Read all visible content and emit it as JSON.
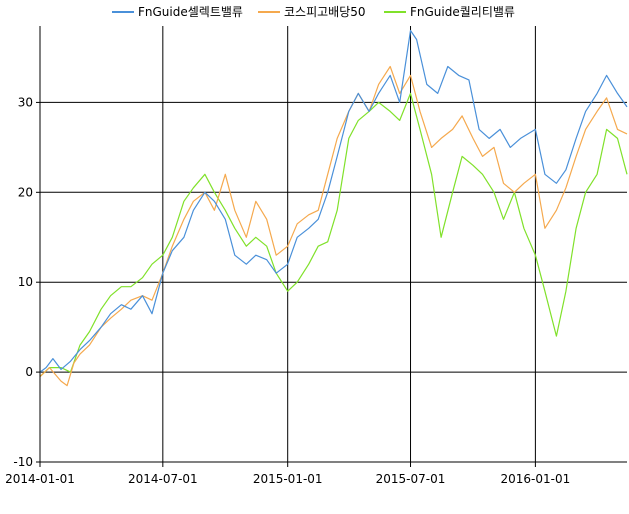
{
  "chart_data": {
    "type": "line",
    "title": "",
    "xlabel": "",
    "ylabel": "",
    "ylim": [
      -10,
      38.5
    ],
    "xlim": [
      "2014-01-01",
      "2016-05-15"
    ],
    "grid": true,
    "legend": "top-center",
    "xticks": [
      "2014-01-01",
      "2014-07-01",
      "2015-01-01",
      "2015-07-01",
      "2016-01-01"
    ],
    "yticks": [
      -10,
      0,
      10,
      20,
      30
    ],
    "series": [
      {
        "name": "FnGuide셀렉트밸류",
        "color": "#4a90d9",
        "points": [
          [
            "2014-01-01",
            0
          ],
          [
            "2014-01-10",
            0.5
          ],
          [
            "2014-01-20",
            1.5
          ],
          [
            "2014-02-01",
            0.3
          ],
          [
            "2014-02-15",
            1.2
          ],
          [
            "2014-03-01",
            2.5
          ],
          [
            "2014-03-15",
            3.5
          ],
          [
            "2014-04-01",
            5
          ],
          [
            "2014-04-15",
            6.5
          ],
          [
            "2014-05-01",
            7.5
          ],
          [
            "2014-05-15",
            7
          ],
          [
            "2014-06-01",
            8.5
          ],
          [
            "2014-06-15",
            6.5
          ],
          [
            "2014-07-01",
            11
          ],
          [
            "2014-07-15",
            13.5
          ],
          [
            "2014-08-01",
            15
          ],
          [
            "2014-08-15",
            18
          ],
          [
            "2014-09-01",
            20
          ],
          [
            "2014-09-15",
            19
          ],
          [
            "2014-10-01",
            17
          ],
          [
            "2014-10-15",
            13
          ],
          [
            "2014-11-01",
            12
          ],
          [
            "2014-11-15",
            13
          ],
          [
            "2014-12-01",
            12.5
          ],
          [
            "2014-12-15",
            11
          ],
          [
            "2015-01-01",
            12
          ],
          [
            "2015-01-15",
            15
          ],
          [
            "2015-02-01",
            16
          ],
          [
            "2015-02-15",
            17
          ],
          [
            "2015-03-01",
            20
          ],
          [
            "2015-03-15",
            24
          ],
          [
            "2015-04-01",
            29
          ],
          [
            "2015-04-15",
            31
          ],
          [
            "2015-05-01",
            29
          ],
          [
            "2015-05-15",
            31
          ],
          [
            "2015-06-01",
            33
          ],
          [
            "2015-06-15",
            30
          ],
          [
            "2015-07-01",
            38
          ],
          [
            "2015-07-10",
            37
          ],
          [
            "2015-07-25",
            32
          ],
          [
            "2015-08-10",
            31
          ],
          [
            "2015-08-25",
            34
          ],
          [
            "2015-09-10",
            33
          ],
          [
            "2015-09-25",
            32.5
          ],
          [
            "2015-10-10",
            27
          ],
          [
            "2015-10-25",
            26
          ],
          [
            "2015-11-10",
            27
          ],
          [
            "2015-11-25",
            25
          ],
          [
            "2015-12-10",
            26
          ],
          [
            "2016-01-01",
            27
          ],
          [
            "2016-01-15",
            22
          ],
          [
            "2016-02-01",
            21
          ],
          [
            "2016-02-15",
            22.5
          ],
          [
            "2016-03-01",
            26
          ],
          [
            "2016-03-15",
            29
          ],
          [
            "2016-04-01",
            31
          ],
          [
            "2016-04-15",
            33
          ],
          [
            "2016-05-01",
            31
          ],
          [
            "2016-05-15",
            29.5
          ]
        ]
      },
      {
        "name": "코스피고배당50",
        "color": "#f5a94e",
        "points": [
          [
            "2014-01-01",
            -0.5
          ],
          [
            "2014-01-15",
            0.5
          ],
          [
            "2014-02-01",
            -1
          ],
          [
            "2014-02-10",
            -1.5
          ],
          [
            "2014-02-20",
            1
          ],
          [
            "2014-03-01",
            2
          ],
          [
            "2014-03-15",
            3
          ],
          [
            "2014-04-01",
            5
          ],
          [
            "2014-04-15",
            6
          ],
          [
            "2014-05-01",
            7
          ],
          [
            "2014-05-15",
            8
          ],
          [
            "2014-06-01",
            8.5
          ],
          [
            "2014-06-15",
            8
          ],
          [
            "2014-07-01",
            11
          ],
          [
            "2014-07-15",
            14
          ],
          [
            "2014-08-01",
            17
          ],
          [
            "2014-08-15",
            19
          ],
          [
            "2014-09-01",
            20
          ],
          [
            "2014-09-15",
            18
          ],
          [
            "2014-10-01",
            22
          ],
          [
            "2014-10-15",
            18
          ],
          [
            "2014-11-01",
            15
          ],
          [
            "2014-11-15",
            19
          ],
          [
            "2014-12-01",
            17
          ],
          [
            "2014-12-15",
            13
          ],
          [
            "2015-01-01",
            14
          ],
          [
            "2015-01-15",
            16.5
          ],
          [
            "2015-02-01",
            17.5
          ],
          [
            "2015-02-15",
            18
          ],
          [
            "2015-03-01",
            22
          ],
          [
            "2015-03-15",
            26
          ],
          [
            "2015-04-01",
            29
          ],
          [
            "2015-04-15",
            31
          ],
          [
            "2015-05-01",
            29
          ],
          [
            "2015-05-15",
            32
          ],
          [
            "2015-06-01",
            34
          ],
          [
            "2015-06-15",
            31
          ],
          [
            "2015-07-01",
            33
          ],
          [
            "2015-07-15",
            29
          ],
          [
            "2015-08-01",
            25
          ],
          [
            "2015-08-15",
            26
          ],
          [
            "2015-09-01",
            27
          ],
          [
            "2015-09-15",
            28.5
          ],
          [
            "2015-10-01",
            26
          ],
          [
            "2015-10-15",
            24
          ],
          [
            "2015-11-01",
            25
          ],
          [
            "2015-11-15",
            21
          ],
          [
            "2015-12-01",
            20
          ],
          [
            "2015-12-15",
            21
          ],
          [
            "2016-01-01",
            22
          ],
          [
            "2016-01-15",
            16
          ],
          [
            "2016-02-01",
            18
          ],
          [
            "2016-02-15",
            20.5
          ],
          [
            "2016-03-01",
            24
          ],
          [
            "2016-03-15",
            27
          ],
          [
            "2016-04-01",
            29
          ],
          [
            "2016-04-15",
            30.5
          ],
          [
            "2016-05-01",
            27
          ],
          [
            "2016-05-15",
            26.5
          ]
        ]
      },
      {
        "name": "FnGuide퀄리티밸류",
        "color": "#80e12a",
        "points": [
          [
            "2014-01-01",
            -0.5
          ],
          [
            "2014-01-15",
            0.5
          ],
          [
            "2014-02-01",
            0.5
          ],
          [
            "2014-02-15",
            0
          ],
          [
            "2014-03-01",
            3
          ],
          [
            "2014-03-15",
            4.5
          ],
          [
            "2014-04-01",
            7
          ],
          [
            "2014-04-15",
            8.5
          ],
          [
            "2014-05-01",
            9.5
          ],
          [
            "2014-05-15",
            9.5
          ],
          [
            "2014-06-01",
            10.5
          ],
          [
            "2014-06-15",
            12
          ],
          [
            "2014-07-01",
            13
          ],
          [
            "2014-07-15",
            15
          ],
          [
            "2014-08-01",
            19
          ],
          [
            "2014-08-15",
            20.5
          ],
          [
            "2014-09-01",
            22
          ],
          [
            "2014-09-15",
            20
          ],
          [
            "2014-10-01",
            18
          ],
          [
            "2014-10-15",
            16
          ],
          [
            "2014-11-01",
            14
          ],
          [
            "2014-11-15",
            15
          ],
          [
            "2014-12-01",
            14
          ],
          [
            "2014-12-15",
            11
          ],
          [
            "2015-01-01",
            9
          ],
          [
            "2015-01-15",
            10
          ],
          [
            "2015-02-01",
            12
          ],
          [
            "2015-02-15",
            14
          ],
          [
            "2015-03-01",
            14.5
          ],
          [
            "2015-03-15",
            18
          ],
          [
            "2015-04-01",
            26
          ],
          [
            "2015-04-15",
            28
          ],
          [
            "2015-05-01",
            29
          ],
          [
            "2015-05-15",
            30
          ],
          [
            "2015-06-01",
            29
          ],
          [
            "2015-06-15",
            28
          ],
          [
            "2015-07-01",
            31
          ],
          [
            "2015-07-15",
            27
          ],
          [
            "2015-08-01",
            22
          ],
          [
            "2015-08-15",
            15
          ],
          [
            "2015-09-01",
            20
          ],
          [
            "2015-09-15",
            24
          ],
          [
            "2015-10-01",
            23
          ],
          [
            "2015-10-15",
            22
          ],
          [
            "2015-11-01",
            20
          ],
          [
            "2015-11-15",
            17
          ],
          [
            "2015-12-01",
            20
          ],
          [
            "2015-12-15",
            16
          ],
          [
            "2016-01-01",
            13
          ],
          [
            "2016-01-15",
            9
          ],
          [
            "2016-02-01",
            4
          ],
          [
            "2016-02-15",
            9
          ],
          [
            "2016-03-01",
            16
          ],
          [
            "2016-03-15",
            20
          ],
          [
            "2016-04-01",
            22
          ],
          [
            "2016-04-15",
            27
          ],
          [
            "2016-05-01",
            26
          ],
          [
            "2016-05-15",
            22
          ]
        ]
      }
    ]
  }
}
